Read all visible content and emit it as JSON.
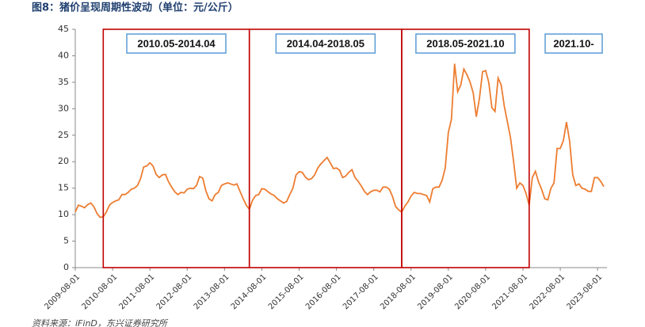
{
  "chart_data": {
    "type": "line",
    "title": "图8：猪价呈现周期性波动（单位：元/公斤）",
    "source": "资料来源：iFinD，东兴证券研究所",
    "x": [
      "2009-08-01",
      "2009-09-01",
      "2009-10-01",
      "2009-11-01",
      "2009-12-01",
      "2010-01-01",
      "2010-02-01",
      "2010-03-01",
      "2010-04-01",
      "2010-05-01",
      "2010-06-01",
      "2010-07-01",
      "2010-08-01",
      "2010-09-01",
      "2010-10-01",
      "2010-11-01",
      "2010-12-01",
      "2011-01-01",
      "2011-02-01",
      "2011-03-01",
      "2011-04-01",
      "2011-05-01",
      "2011-06-01",
      "2011-07-01",
      "2011-08-01",
      "2011-09-01",
      "2011-10-01",
      "2011-11-01",
      "2011-12-01",
      "2012-01-01",
      "2012-02-01",
      "2012-03-01",
      "2012-04-01",
      "2012-05-01",
      "2012-06-01",
      "2012-07-01",
      "2012-08-01",
      "2012-09-01",
      "2012-10-01",
      "2012-11-01",
      "2012-12-01",
      "2013-01-01",
      "2013-02-01",
      "2013-03-01",
      "2013-04-01",
      "2013-05-01",
      "2013-06-01",
      "2013-07-01",
      "2013-08-01",
      "2013-09-01",
      "2013-10-01",
      "2013-11-01",
      "2013-12-01",
      "2014-01-01",
      "2014-02-01",
      "2014-03-01",
      "2014-04-01",
      "2014-05-01",
      "2014-06-01",
      "2014-07-01",
      "2014-08-01",
      "2014-09-01",
      "2014-10-01",
      "2014-11-01",
      "2014-12-01",
      "2015-01-01",
      "2015-02-01",
      "2015-03-01",
      "2015-04-01",
      "2015-05-01",
      "2015-06-01",
      "2015-07-01",
      "2015-08-01",
      "2015-09-01",
      "2015-10-01",
      "2015-11-01",
      "2015-12-01",
      "2016-01-01",
      "2016-02-01",
      "2016-03-01",
      "2016-04-01",
      "2016-05-01",
      "2016-06-01",
      "2016-07-01",
      "2016-08-01",
      "2016-09-01",
      "2016-10-01",
      "2016-11-01",
      "2016-12-01",
      "2017-01-01",
      "2017-02-01",
      "2017-03-01",
      "2017-04-01",
      "2017-05-01",
      "2017-06-01",
      "2017-07-01",
      "2017-08-01",
      "2017-09-01",
      "2017-10-01",
      "2017-11-01",
      "2017-12-01",
      "2018-01-01",
      "2018-02-01",
      "2018-03-01",
      "2018-04-01",
      "2018-05-01",
      "2018-06-01",
      "2018-07-01",
      "2018-08-01",
      "2018-09-01",
      "2018-10-01",
      "2018-11-01",
      "2018-12-01",
      "2019-01-01",
      "2019-02-01",
      "2019-03-01",
      "2019-04-01",
      "2019-05-01",
      "2019-06-01",
      "2019-07-01",
      "2019-08-01",
      "2019-09-01",
      "2019-10-01",
      "2019-11-01",
      "2019-12-01",
      "2020-01-01",
      "2020-02-01",
      "2020-03-01",
      "2020-04-01",
      "2020-05-01",
      "2020-06-01",
      "2020-07-01",
      "2020-08-01",
      "2020-09-01",
      "2020-10-01",
      "2020-11-01",
      "2020-12-01",
      "2021-01-01",
      "2021-02-01",
      "2021-03-01",
      "2021-04-01",
      "2021-05-01",
      "2021-06-01",
      "2021-07-01",
      "2021-08-01",
      "2021-09-01",
      "2021-10-01",
      "2021-11-01",
      "2021-12-01",
      "2022-01-01",
      "2022-02-01",
      "2022-03-01",
      "2022-04-01",
      "2022-05-01",
      "2022-06-01",
      "2022-07-01",
      "2022-08-01",
      "2022-09-01",
      "2022-10-01",
      "2022-11-01",
      "2022-12-01",
      "2023-01-01",
      "2023-02-01",
      "2023-03-01",
      "2023-04-01",
      "2023-05-01",
      "2023-06-01",
      "2023-07-01",
      "2023-08-01",
      "2023-09-01",
      "2023-10-01"
    ],
    "series": [
      {
        "color": "#ed7d31",
        "values": [
          10.5,
          11.8,
          11.6,
          11.3,
          11.9,
          12.2,
          11.5,
          10.2,
          9.5,
          9.6,
          10.5,
          11.8,
          12.3,
          12.6,
          12.8,
          13.8,
          13.8,
          14.2,
          14.8,
          15.0,
          15.5,
          16.8,
          19.0,
          19.2,
          19.8,
          19.2,
          17.6,
          17.0,
          17.5,
          17.6,
          16.2,
          15.2,
          14.3,
          13.8,
          14.2,
          14.1,
          14.8,
          15.0,
          14.9,
          15.5,
          17.2,
          16.9,
          14.5,
          13.0,
          12.6,
          13.8,
          14.2,
          15.5,
          15.8,
          16.0,
          15.8,
          15.6,
          15.8,
          14.4,
          13.0,
          11.8,
          11.0,
          12.7,
          13.6,
          13.8,
          14.9,
          14.8,
          14.3,
          13.9,
          13.6,
          13.0,
          12.6,
          12.2,
          12.5,
          13.8,
          15.0,
          17.5,
          18.1,
          18.0,
          17.1,
          16.6,
          16.8,
          17.5,
          18.8,
          19.6,
          20.2,
          20.8,
          19.8,
          18.7,
          18.8,
          18.4,
          17.0,
          17.3,
          18.0,
          18.5,
          17.0,
          16.3,
          15.4,
          14.4,
          13.8,
          14.3,
          14.6,
          14.6,
          14.3,
          15.2,
          15.2,
          14.8,
          13.5,
          11.6,
          10.9,
          10.5,
          11.6,
          12.4,
          13.5,
          14.2,
          14.0,
          14.0,
          13.8,
          13.6,
          12.4,
          14.9,
          15.2,
          15.2,
          16.5,
          18.8,
          25.5,
          28.0,
          38.5,
          33.2,
          34.5,
          37.5,
          36.4,
          35.0,
          33.0,
          28.5,
          32.0,
          37.0,
          37.2,
          35.0,
          30.2,
          29.5,
          35.8,
          34.5,
          30.5,
          27.5,
          24.5,
          20.0,
          15.0,
          16.0,
          15.5,
          14.0,
          11.8,
          17.0,
          18.2,
          16.2,
          14.8,
          13.0,
          12.8,
          15.0,
          16.0,
          22.5,
          22.5,
          24.0,
          27.5,
          24.0,
          17.5,
          15.5,
          15.8,
          15.0,
          14.8,
          14.4,
          14.4,
          17.0,
          17.0,
          16.3,
          15.3
        ]
      }
    ],
    "xticks": [
      "2009-08-01",
      "2010-08-01",
      "2011-08-01",
      "2012-08-01",
      "2013-08-01",
      "2014-08-01",
      "2015-08-01",
      "2016-08-01",
      "2017-08-01",
      "2018-08-01",
      "2019-08-01",
      "2020-08-01",
      "2021-08-01",
      "2022-08-01",
      "2023-08-01"
    ],
    "ylim": [
      0,
      45
    ],
    "yticks": [
      0,
      5,
      10,
      15,
      20,
      25,
      30,
      35,
      40,
      45
    ],
    "annotations": [
      {
        "text": "2010.05-2014.04",
        "span": [
          "2010-05-01",
          "2014-04-01"
        ]
      },
      {
        "text": "2014.04-2018.05",
        "span": [
          "2014-04-01",
          "2018-05-01"
        ]
      },
      {
        "text": "2018.05-2021.10",
        "span": [
          "2018-05-01",
          "2021-10-01"
        ]
      },
      {
        "text": "2021.10-"
      }
    ],
    "box_color": "#c00000"
  }
}
